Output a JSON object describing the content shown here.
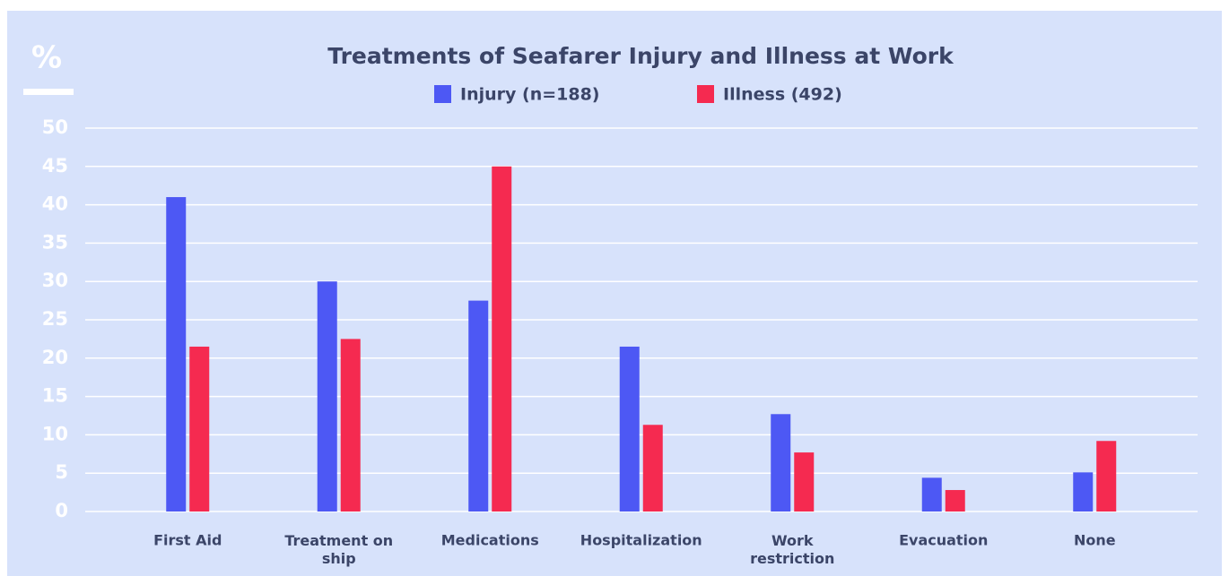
{
  "chart_data": {
    "type": "bar",
    "title": "Treatments of Seafarer Injury and Illness at Work",
    "y_axis_label": "%",
    "categories": [
      "First Aid",
      "Treatment on ship",
      "Medications",
      "Hospitalization",
      "Work restriction",
      "Evacuation",
      "None"
    ],
    "series": [
      {
        "name": "Injury (n=188)",
        "color": "#4d58f4",
        "values": [
          41,
          30,
          27.5,
          21.5,
          12.7,
          4.4,
          5.1
        ]
      },
      {
        "name": "Illness (492)",
        "color": "#f52a50",
        "values": [
          21.5,
          22.5,
          45,
          11.3,
          7.7,
          2.8,
          9.2
        ]
      }
    ],
    "ylim": [
      0,
      50
    ],
    "yticks": [
      0,
      5,
      10,
      15,
      20,
      25,
      30,
      35,
      40,
      45,
      50
    ],
    "grid": true
  }
}
